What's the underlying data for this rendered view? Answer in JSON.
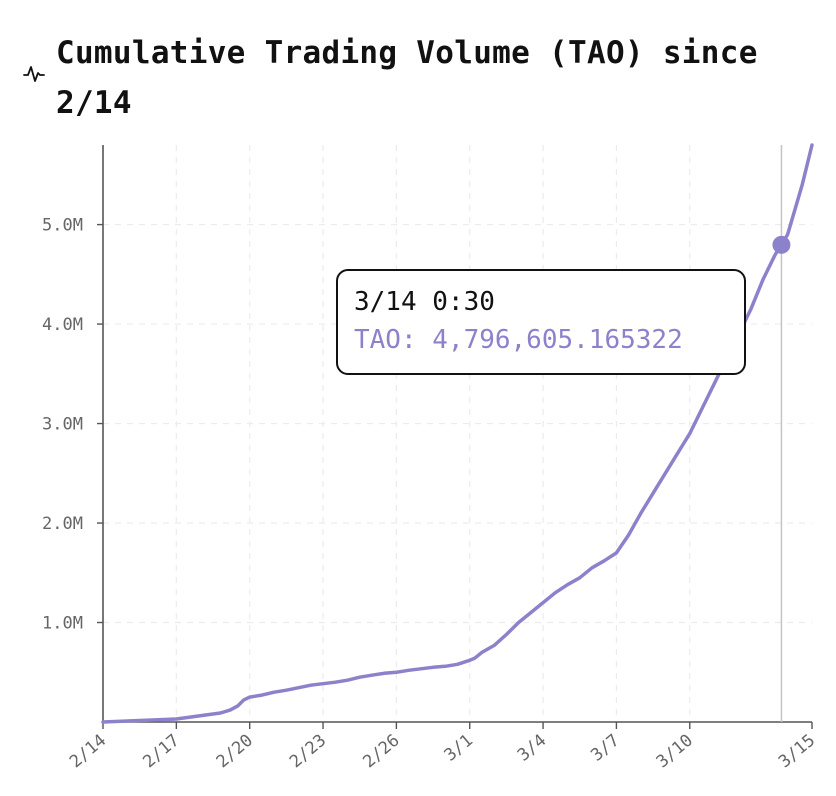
{
  "header": {
    "title": "Cumulative Trading Volume (TAO) since 2/14",
    "icon": "activity-pulse-icon"
  },
  "tooltip": {
    "date": "3/14 0:30",
    "value_text": "TAO: 4,796,605.165322"
  },
  "chart_data": {
    "type": "line",
    "title": "Cumulative Trading Volume (TAO) since 2/14",
    "xlabel": "",
    "ylabel": "",
    "x_tick_labels": [
      "2/14",
      "2/17",
      "2/20",
      "2/23",
      "2/26",
      "3/1",
      "3/4",
      "3/7",
      "3/10",
      "3/15"
    ],
    "x_tick_days": [
      0,
      3,
      6,
      9,
      12,
      15,
      18,
      21,
      24,
      29
    ],
    "y_tick_labels": [
      "1.0M",
      "2.0M",
      "3.0M",
      "4.0M",
      "5.0M"
    ],
    "y_ticks": [
      1000000,
      2000000,
      3000000,
      4000000,
      5000000
    ],
    "xlim_days": [
      0,
      29
    ],
    "ylim": [
      0,
      5800000
    ],
    "grid": true,
    "line_color": "#8c82cc",
    "series": [
      {
        "x_days": [
          0,
          1,
          2,
          3,
          3.6,
          4.2,
          4.8,
          5.2,
          5.5,
          5.75,
          6.0,
          6.5,
          7,
          7.5,
          8,
          8.5,
          9,
          9.5,
          10,
          10.5,
          11,
          11.5,
          12,
          12.5,
          13,
          13.5,
          14,
          14.5,
          15,
          15.2,
          15.5,
          16,
          16.5,
          17,
          17.5,
          18,
          18.5,
          19,
          19.5,
          20,
          20.5,
          21,
          21.5,
          22,
          22.5,
          23,
          23.5,
          24,
          24.5,
          25,
          25.5,
          26,
          26.5,
          27,
          27.5,
          27.75,
          28,
          28.3,
          28.6,
          29
        ],
        "values": [
          0,
          10000,
          20000,
          30000,
          50000,
          70000,
          90000,
          120000,
          160000,
          220000,
          250000,
          270000,
          300000,
          320000,
          345000,
          370000,
          385000,
          400000,
          420000,
          450000,
          470000,
          490000,
          500000,
          520000,
          535000,
          550000,
          560000,
          580000,
          620000,
          640000,
          700000,
          770000,
          880000,
          1000000,
          1100000,
          1200000,
          1300000,
          1380000,
          1450000,
          1550000,
          1620000,
          1700000,
          1880000,
          2100000,
          2300000,
          2500000,
          2700000,
          2900000,
          3150000,
          3400000,
          3650000,
          3900000,
          4150000,
          4450000,
          4700000,
          4796605,
          4900000,
          5150000,
          5400000,
          5800000
        ]
      }
    ],
    "highlight": {
      "x_days": 27.75,
      "value": 4796605.165322
    }
  }
}
